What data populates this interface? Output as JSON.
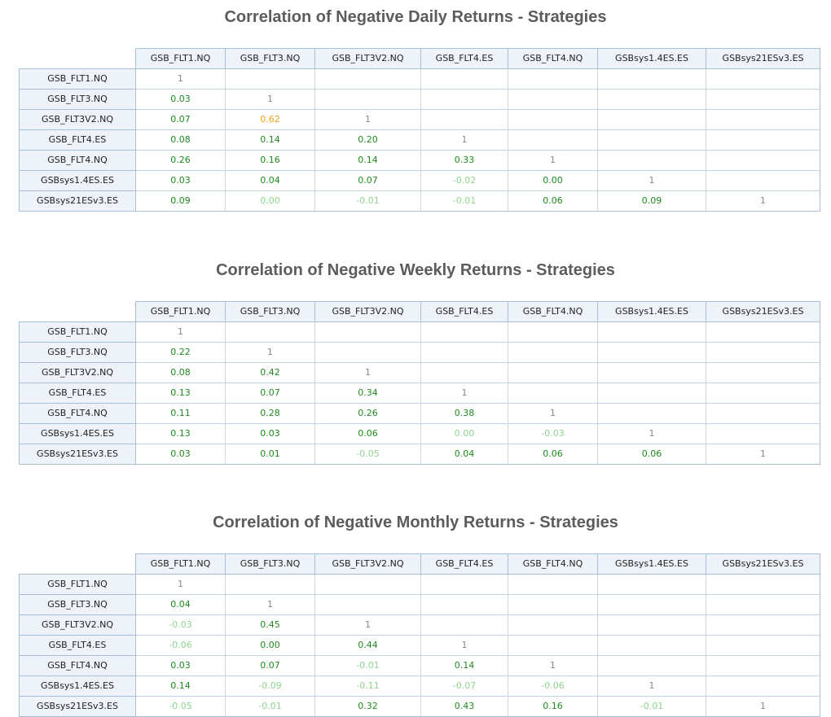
{
  "colors": {
    "strong_green": "#1e8a1e",
    "light_green": "#8fd48f",
    "orange": "#f0a014",
    "diag_gray": "#888888"
  },
  "tables": [
    {
      "title": "Correlation of Negative Daily Returns - Strategies",
      "columns": [
        "GSB_FLT1.NQ",
        "GSB_FLT3.NQ",
        "GSB_FLT3V2.NQ",
        "GSB_FLT4.ES",
        "GSB_FLT4.NQ",
        "GSBsys1.4ES.ES",
        "GSBsys21ESv3.ES"
      ],
      "rows": [
        {
          "label": "GSB_FLT1.NQ",
          "values": [
            "1"
          ]
        },
        {
          "label": "GSB_FLT3.NQ",
          "values": [
            "0.03",
            "1"
          ]
        },
        {
          "label": "GSB_FLT3V2.NQ",
          "values": [
            "0.07",
            "0.62",
            "1"
          ]
        },
        {
          "label": "GSB_FLT4.ES",
          "values": [
            "0.08",
            "0.14",
            "0.20",
            "1"
          ]
        },
        {
          "label": "GSB_FLT4.NQ",
          "values": [
            "0.26",
            "0.16",
            "0.14",
            "0.33",
            "1"
          ]
        },
        {
          "label": "GSBsys1.4ES.ES",
          "values": [
            "0.03",
            "0.04",
            "0.07",
            "-0.02",
            "0.00",
            "1"
          ]
        },
        {
          "label": "GSBsys21ESv3.ES",
          "values": [
            "0.09",
            "0.00",
            "-0.01",
            "-0.01",
            "0.06",
            "0.09",
            "1"
          ]
        }
      ],
      "styles": [
        [
          "diag"
        ],
        [
          "strong",
          "diag"
        ],
        [
          "strong",
          "orange",
          "diag"
        ],
        [
          "strong",
          "strong",
          "strong",
          "diag"
        ],
        [
          "strong",
          "strong",
          "strong",
          "strong",
          "diag"
        ],
        [
          "strong",
          "strong",
          "strong",
          "light",
          "strong",
          "diag"
        ],
        [
          "strong",
          "light",
          "light",
          "light",
          "strong",
          "strong",
          "diag"
        ]
      ]
    },
    {
      "title": "Correlation of Negative Weekly Returns - Strategies",
      "columns": [
        "GSB_FLT1.NQ",
        "GSB_FLT3.NQ",
        "GSB_FLT3V2.NQ",
        "GSB_FLT4.ES",
        "GSB_FLT4.NQ",
        "GSBsys1.4ES.ES",
        "GSBsys21ESv3.ES"
      ],
      "rows": [
        {
          "label": "GSB_FLT1.NQ",
          "values": [
            "1"
          ]
        },
        {
          "label": "GSB_FLT3.NQ",
          "values": [
            "0.22",
            "1"
          ]
        },
        {
          "label": "GSB_FLT3V2.NQ",
          "values": [
            "0.08",
            "0.42",
            "1"
          ]
        },
        {
          "label": "GSB_FLT4.ES",
          "values": [
            "0.13",
            "0.07",
            "0.34",
            "1"
          ]
        },
        {
          "label": "GSB_FLT4.NQ",
          "values": [
            "0.11",
            "0.28",
            "0.26",
            "0.38",
            "1"
          ]
        },
        {
          "label": "GSBsys1.4ES.ES",
          "values": [
            "0.13",
            "0.03",
            "0.06",
            "0.00",
            "-0.03",
            "1"
          ]
        },
        {
          "label": "GSBsys21ESv3.ES",
          "values": [
            "0.03",
            "0.01",
            "-0.05",
            "0.04",
            "0.06",
            "0.06",
            "1"
          ]
        }
      ],
      "styles": [
        [
          "diag"
        ],
        [
          "strong",
          "diag"
        ],
        [
          "strong",
          "strong",
          "diag"
        ],
        [
          "strong",
          "strong",
          "strong",
          "diag"
        ],
        [
          "strong",
          "strong",
          "strong",
          "strong",
          "diag"
        ],
        [
          "strong",
          "strong",
          "strong",
          "light",
          "light",
          "diag"
        ],
        [
          "strong",
          "strong",
          "light",
          "strong",
          "strong",
          "strong",
          "diag"
        ]
      ]
    },
    {
      "title": "Correlation of Negative Monthly Returns - Strategies",
      "columns": [
        "GSB_FLT1.NQ",
        "GSB_FLT3.NQ",
        "GSB_FLT3V2.NQ",
        "GSB_FLT4.ES",
        "GSB_FLT4.NQ",
        "GSBsys1.4ES.ES",
        "GSBsys21ESv3.ES"
      ],
      "rows": [
        {
          "label": "GSB_FLT1.NQ",
          "values": [
            "1"
          ]
        },
        {
          "label": "GSB_FLT3.NQ",
          "values": [
            "0.04",
            "1"
          ]
        },
        {
          "label": "GSB_FLT3V2.NQ",
          "values": [
            "-0.03",
            "0.45",
            "1"
          ]
        },
        {
          "label": "GSB_FLT4.ES",
          "values": [
            "-0.06",
            "0.00",
            "0.44",
            "1"
          ]
        },
        {
          "label": "GSB_FLT4.NQ",
          "values": [
            "0.03",
            "0.07",
            "-0.01",
            "0.14",
            "1"
          ]
        },
        {
          "label": "GSBsys1.4ES.ES",
          "values": [
            "0.14",
            "-0.09",
            "-0.11",
            "-0.07",
            "-0.06",
            "1"
          ]
        },
        {
          "label": "GSBsys21ESv3.ES",
          "values": [
            "-0.05",
            "-0.01",
            "0.32",
            "0.43",
            "0.16",
            "-0.01",
            "1"
          ]
        }
      ],
      "styles": [
        [
          "diag"
        ],
        [
          "strong",
          "diag"
        ],
        [
          "light",
          "strong",
          "diag"
        ],
        [
          "light",
          "strong",
          "strong",
          "diag"
        ],
        [
          "strong",
          "strong",
          "light",
          "strong",
          "diag"
        ],
        [
          "strong",
          "light",
          "light",
          "light",
          "light",
          "diag"
        ],
        [
          "light",
          "light",
          "strong",
          "strong",
          "strong",
          "light",
          "diag"
        ]
      ]
    }
  ]
}
